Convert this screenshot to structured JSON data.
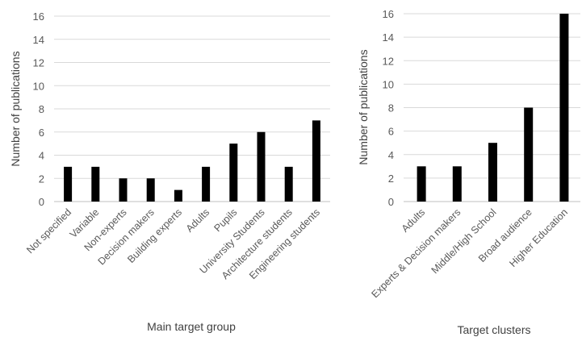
{
  "chart_data": [
    {
      "type": "bar",
      "categories": [
        "Not specified",
        "Variable",
        "Non-experts",
        "Decision makers",
        "Building experts",
        "Adults",
        "Pupils",
        "University Students",
        "Architecture students",
        "Engineering students"
      ],
      "values": [
        3,
        3,
        2,
        2,
        1,
        3,
        5,
        6,
        3,
        7
      ],
      "title": "",
      "xlabel": "Main target group",
      "ylabel": "Number of publications",
      "ylim": [
        0,
        16
      ],
      "yticks": [
        "0",
        "2",
        "4",
        "6",
        "8",
        "10",
        "12",
        "14",
        "16"
      ],
      "grid": true,
      "bar_color": "#000000"
    },
    {
      "type": "bar",
      "categories": [
        "Adults",
        "Experts & Decision makers",
        "Middle/High School",
        "Broad audience",
        "Higher Education"
      ],
      "values": [
        3,
        3,
        5,
        8,
        16
      ],
      "title": "",
      "xlabel": "Target clusters",
      "ylabel": "Number of publications",
      "ylim": [
        0,
        16
      ],
      "yticks": [
        "0",
        "2",
        "4",
        "6",
        "8",
        "10",
        "12",
        "14",
        "16"
      ],
      "grid": true,
      "bar_color": "#000000"
    }
  ]
}
